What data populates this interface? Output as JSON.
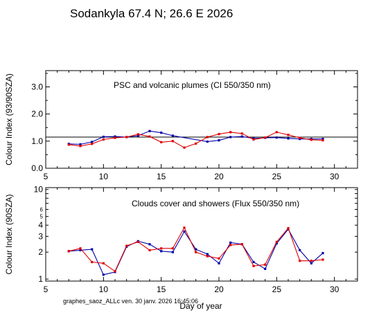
{
  "title": "Sodankyla  67.4 N; 26.6 E   2026",
  "footer": "graphes_saoz_ALLc  ven. 30 janv. 2026 16:45:06",
  "colors": {
    "series_blue": "#0000aa",
    "series_red": "#e00000",
    "axis": "#000000"
  },
  "chart_data": [
    {
      "type": "line",
      "annotation": "PSC and volcanic plumes (CI 550/350 nm)",
      "ylabel": "Colour Index (93/90SZA)",
      "xlabel": "",
      "xlim": [
        5,
        32
      ],
      "ylim": [
        0,
        3.6
      ],
      "xticks": [
        "5",
        "10",
        "15",
        "20",
        "25",
        "30"
      ],
      "yticks": [
        "0.0",
        "1.0",
        "2.0",
        "3.0"
      ],
      "reference_line": 1.15,
      "grid": false,
      "series": [
        {
          "color": "#0000aa",
          "x": [
            7,
            8,
            9,
            10,
            11,
            12,
            13,
            14,
            15,
            16,
            19,
            20,
            21,
            22,
            23,
            24,
            25,
            26,
            27,
            28,
            29
          ],
          "y": [
            0.9,
            0.88,
            0.97,
            1.16,
            1.17,
            1.15,
            1.2,
            1.37,
            1.31,
            1.2,
            0.98,
            1.03,
            1.15,
            1.17,
            1.1,
            1.12,
            1.13,
            1.1,
            1.08,
            1.08,
            1.08
          ]
        },
        {
          "color": "#e00000",
          "x": [
            7,
            8,
            9,
            10,
            11,
            12,
            13,
            14,
            15,
            16,
            17,
            18,
            19,
            20,
            21,
            22,
            23,
            24,
            25,
            26,
            27,
            28,
            29
          ],
          "y": [
            0.87,
            0.82,
            0.9,
            1.06,
            1.12,
            1.15,
            1.25,
            1.17,
            0.96,
            1.0,
            0.76,
            0.91,
            1.15,
            1.26,
            1.33,
            1.28,
            1.06,
            1.13,
            1.33,
            1.23,
            1.12,
            1.05,
            1.03
          ]
        }
      ]
    },
    {
      "type": "line",
      "annotation": "Clouds cover and showers (Flux 550/350 nm)",
      "ylabel": "Colour Index (90SZA)",
      "xlabel": "Day of year",
      "xlim": [
        5,
        32
      ],
      "ylim": [
        0.95,
        10.5
      ],
      "yscale": "log",
      "xticks": [
        "5",
        "10",
        "15",
        "20",
        "25",
        "30"
      ],
      "yticks": [
        "1",
        "2",
        "3",
        "4",
        "5",
        "6",
        "10"
      ],
      "grid": false,
      "series": [
        {
          "color": "#0000aa",
          "x": [
            7,
            8,
            9,
            10,
            11,
            12,
            13,
            14,
            15,
            16,
            17,
            18,
            19,
            20,
            21,
            22,
            23,
            24,
            25,
            26,
            27,
            28,
            29
          ],
          "y": [
            2.05,
            2.1,
            2.15,
            1.12,
            1.2,
            2.3,
            2.65,
            2.45,
            2.05,
            2.0,
            3.4,
            2.15,
            1.9,
            1.5,
            2.55,
            2.45,
            1.55,
            1.3,
            2.5,
            3.6,
            2.1,
            1.5,
            1.95
          ]
        },
        {
          "color": "#e00000",
          "x": [
            7,
            8,
            9,
            10,
            11,
            12,
            13,
            14,
            15,
            16,
            17,
            18,
            19,
            20,
            21,
            22,
            23,
            24,
            25,
            26,
            27,
            28,
            29
          ],
          "y": [
            2.05,
            2.2,
            1.55,
            1.5,
            1.22,
            2.35,
            2.6,
            2.1,
            2.2,
            2.2,
            3.75,
            2.0,
            1.8,
            1.7,
            2.4,
            2.45,
            1.4,
            1.45,
            2.6,
            3.7,
            1.6,
            1.6,
            1.65
          ]
        }
      ]
    }
  ]
}
